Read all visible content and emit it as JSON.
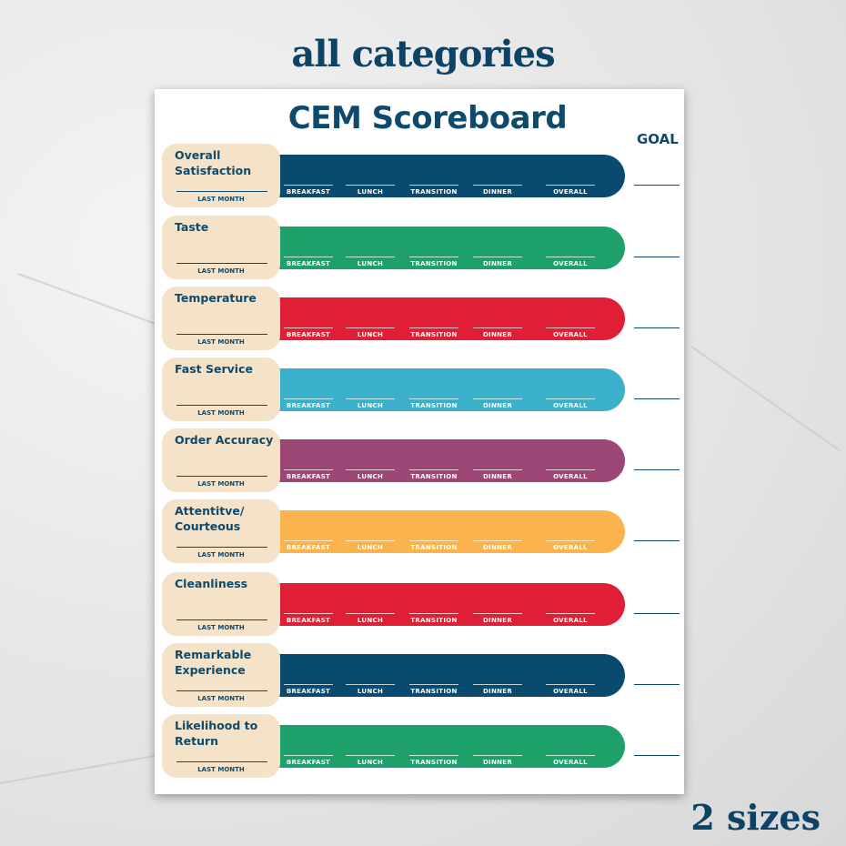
{
  "headline": "all categories",
  "footer": "2 sizes",
  "sheet": {
    "title": "CEM Scoreboard",
    "goal_label": "GOAL",
    "last_month_label": "LAST MONTH",
    "slots": [
      "BREAKFAST",
      "LUNCH",
      "TRANSITION",
      "DINNER",
      "OVERALL"
    ],
    "rows": [
      {
        "name": "Overall Satisfaction",
        "color": "#0a4a6e"
      },
      {
        "name": "Taste",
        "color": "#1ea06a"
      },
      {
        "name": "Temperature",
        "color": "#e01f37"
      },
      {
        "name": "Fast Service",
        "color": "#3ab0cb"
      },
      {
        "name": "Order Accuracy",
        "color": "#9b4675"
      },
      {
        "name": "Attentitve/ Courteous",
        "color": "#fbb44d"
      },
      {
        "name": "Cleanliness",
        "color": "#e01f37"
      },
      {
        "name": "Remarkable Experience",
        "color": "#0a4a6e"
      },
      {
        "name": "Likelihood to Return",
        "color": "#1ea06a"
      }
    ]
  }
}
